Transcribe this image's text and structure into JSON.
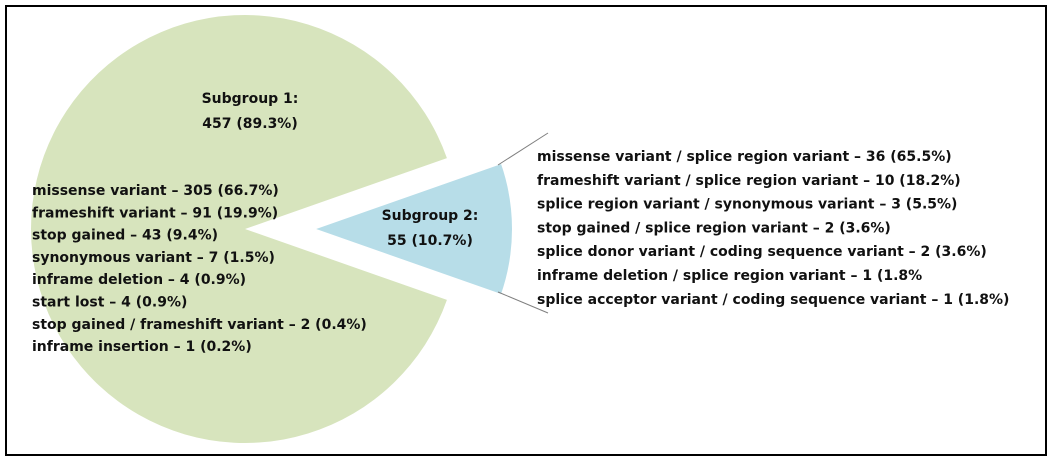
{
  "chart_data": {
    "type": "pie",
    "categories": [
      "Subgroup 1:",
      "Subgroup 2:"
    ],
    "values": [
      457,
      55
    ],
    "value_labels": [
      "457 (89.3%)",
      "55 (10.7%)"
    ],
    "colors": [
      "#d7e4bd",
      "#b7dde8"
    ],
    "exploded": [
      false,
      true
    ],
    "annotations": [
      [
        "missense variant – 305 (66.7%)",
        "frameshift  variant – 91 (19.9%)",
        "stop gained  – 43 (9.4%)",
        "synonymous variant – 7 (1.5%)",
        "inframe deletion – 4 (0.9%)",
        "start lost – 4 (0.9%)",
        "stop gained / frameshift variant – 2 (0.4%)",
        "inframe insertion – 1 (0.2%)"
      ],
      [
        "missense variant / splice region variant – 36 (65.5%)",
        "frameshift  variant / splice region variant – 10 (18.2%)",
        "splice region variant / synonymous variant – 3 (5.5%)",
        "stop gained / splice region variant – 2 (3.6%)",
        "splice donor variant / coding sequence variant  – 2 (3.6%)",
        "inframe deletion / splice region variant – 1 (1.8%",
        "splice acceptor variant / coding sequence variant – 1 (1.8%)"
      ]
    ]
  }
}
